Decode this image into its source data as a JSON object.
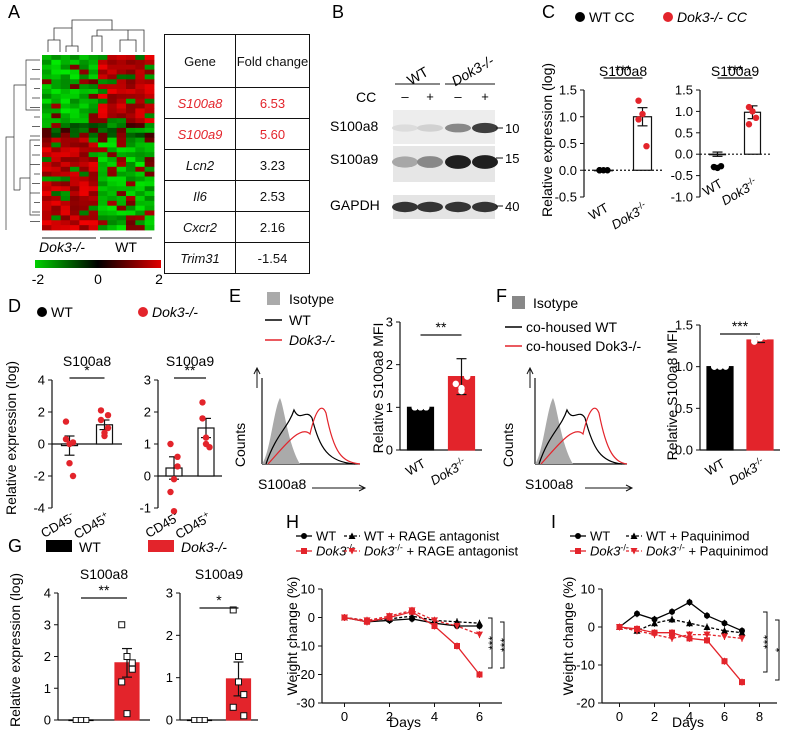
{
  "colors": {
    "wt": "#000000",
    "dok3": "#e3242b",
    "grey": "#aaaaaa"
  },
  "panel_A": {
    "letter": "A",
    "x_labels": [
      "Dok3-/-",
      "WT"
    ],
    "colorbar_ticks": [
      "-2",
      "0",
      "2"
    ],
    "table": {
      "headers": [
        "Gene",
        "Fold change"
      ],
      "rows": [
        {
          "gene": "S100a8",
          "fold": "6.53",
          "highlight": true
        },
        {
          "gene": "S100a9",
          "fold": "5.60",
          "highlight": true
        },
        {
          "gene": "Lcn2",
          "fold": "3.23",
          "highlight": false
        },
        {
          "gene": "Il6",
          "fold": "2.53",
          "highlight": false
        },
        {
          "gene": "Cxcr2",
          "fold": "2.16",
          "highlight": false
        },
        {
          "gene": "Trim31",
          "fold": "-1.54",
          "highlight": false
        }
      ]
    }
  },
  "panel_B": {
    "letter": "B",
    "groups": [
      "WT",
      "Dok3-/-"
    ],
    "cc_label": "CC",
    "cc_marks": [
      "–",
      "+",
      "–",
      "+"
    ],
    "proteins": [
      "S100a8",
      "S100a9",
      "GAPDH"
    ],
    "kda": [
      "10",
      "15",
      "40"
    ],
    "band_intensity": {
      "S100a8": [
        0.05,
        0.1,
        0.45,
        0.8
      ],
      "S100a9": [
        0.3,
        0.45,
        0.95,
        0.95
      ],
      "GAPDH": [
        0.85,
        0.85,
        0.85,
        0.85
      ]
    }
  },
  "panel_C": {
    "letter": "C",
    "legend": [
      "WT CC",
      "Dok3-/- CC"
    ],
    "ylabel": "Relative expression (log)"
  },
  "panel_D": {
    "letter": "D",
    "legend": [
      "WT",
      "Dok3-/-"
    ],
    "ylabel": "Relative expression (log)"
  },
  "panel_E": {
    "letter": "E",
    "legend": [
      "Isotype",
      "WT",
      "Dok3-/-"
    ],
    "hist_ylabel": "Counts",
    "hist_xlabel": "S100a8",
    "bar_ylabel": "Relative S100a8 MFI"
  },
  "panel_F": {
    "letter": "F",
    "legend": [
      "Isotype",
      "co-housed WT",
      "co-housed Dok3-/-"
    ],
    "hist_ylabel": "Counts",
    "hist_xlabel": "S100a8",
    "bar_ylabel": "Relative S100a8 MFI"
  },
  "panel_G": {
    "letter": "G",
    "legend": [
      "WT",
      "Dok3-/-"
    ],
    "ylabel": "Relative expression (log)"
  },
  "panel_H": {
    "letter": "H",
    "legend": [
      "WT",
      "WT + RAGE antagonist",
      "Dok3-/-",
      "Dok3-/- + RAGE antagonist"
    ],
    "ylabel": "Weight change (%)",
    "xlabel": "Days"
  },
  "panel_I": {
    "letter": "I",
    "legend": [
      "WT",
      "WT + Paquinimod",
      "Dok3-/-",
      "Dok3-/- + Paquinimod"
    ],
    "ylabel": "Weight change (%)",
    "xlabel": "Days"
  },
  "chart_data": [
    {
      "id": "C1",
      "type": "bar",
      "title": "S100a8",
      "categories": [
        "WT",
        "Dok3-/-"
      ],
      "values": [
        0.0,
        1.0
      ],
      "points": [
        [
          0,
          0,
          0,
          0
        ],
        [
          0.95,
          1.05,
          0.45,
          1.3
        ]
      ],
      "errors": [
        0.02,
        0.17
      ],
      "ylim": [
        -0.5,
        1.5
      ],
      "ticks": [
        -0.5,
        0.0,
        0.5,
        1.0,
        1.5
      ],
      "significance": "***"
    },
    {
      "id": "C2",
      "type": "bar",
      "title": "S100a9",
      "categories": [
        "WT",
        "Dok3-/-"
      ],
      "values": [
        0.0,
        0.98
      ],
      "points": [
        [
          -0.3,
          -0.32,
          -0.28,
          -0.3
        ],
        [
          0.7,
          1.0,
          0.85,
          1.1
        ]
      ],
      "errors": [
        0.05,
        0.15
      ],
      "ylim": [
        -1.0,
        1.5
      ],
      "ticks": [
        -1.0,
        -0.5,
        0.0,
        0.5,
        1.0,
        1.5
      ],
      "significance": "***"
    },
    {
      "id": "D1",
      "type": "bar",
      "title": "S100a8",
      "categories": [
        "CD45-",
        "CD45+"
      ],
      "values": [
        -0.1,
        1.2
      ],
      "points": [
        [
          0.3,
          -1.2,
          -2.0,
          1.4,
          0.0,
          0.1
        ],
        [
          1.5,
          0.7,
          1.0,
          2.1,
          0.5,
          1.8
        ]
      ],
      "errors": [
        0.6,
        0.3
      ],
      "ylim": [
        -4,
        4
      ],
      "ticks": [
        -4,
        -2,
        0,
        2,
        4
      ],
      "significance": "*"
    },
    {
      "id": "D2",
      "type": "bar",
      "title": "S100a9",
      "categories": [
        "CD45-",
        "CD45+"
      ],
      "values": [
        0.25,
        1.5
      ],
      "points": [
        [
          1.0,
          -0.1,
          0.3,
          -0.5,
          -1.1,
          0.6
        ],
        [
          2.3,
          1.2,
          0.9,
          1.8,
          1.0
        ]
      ],
      "errors": [
        0.35,
        0.3
      ],
      "ylim": [
        -1,
        3
      ],
      "ticks": [
        -1,
        0,
        1,
        2,
        3
      ],
      "significance": "**"
    },
    {
      "id": "E",
      "type": "bar",
      "categories": [
        "WT",
        "Dok3-/-"
      ],
      "values": [
        1.0,
        1.72
      ],
      "points": [
        [
          1,
          1,
          1,
          1,
          1,
          1
        ],
        [
          2.05,
          1.45,
          1.8,
          1.55,
          1.38,
          1.72
        ]
      ],
      "errors": [
        0.02,
        0.42
      ],
      "ylim": [
        0,
        3
      ],
      "ticks": [
        0,
        1,
        2,
        3
      ],
      "significance": "**"
    },
    {
      "id": "F",
      "type": "bar",
      "categories": [
        "WT",
        "Dok3-/-"
      ],
      "values": [
        1.0,
        1.32
      ],
      "points": [
        [
          1,
          1,
          1,
          1
        ],
        [
          1.3,
          1.34,
          1.36,
          1.33
        ]
      ],
      "errors": [
        0.01,
        0.03
      ],
      "ylim": [
        0,
        1.5
      ],
      "ticks": [
        0.0,
        0.5,
        1.0,
        1.5
      ],
      "significance": "***"
    },
    {
      "id": "G1",
      "type": "bar",
      "title": "S100a8",
      "categories": [
        "WT",
        "Dok3-/-"
      ],
      "values": [
        0.0,
        1.8
      ],
      "points": [
        [
          0,
          0,
          0,
          0,
          0,
          0
        ],
        [
          3.0,
          2.0,
          1.6,
          1.2,
          0.2,
          1.8
        ]
      ],
      "errors": [
        0.02,
        0.45
      ],
      "ylim": [
        0,
        4
      ],
      "ticks": [
        0,
        1,
        2,
        3,
        4
      ],
      "significance": "**"
    },
    {
      "id": "G2",
      "type": "bar",
      "title": "S100a9",
      "categories": [
        "WT",
        "Dok3-/-"
      ],
      "values": [
        0.0,
        0.97
      ],
      "points": [
        [
          0,
          0,
          0,
          0,
          0,
          0
        ],
        [
          2.6,
          1.5,
          0.6,
          0.3,
          0.9,
          0.1
        ]
      ],
      "errors": [
        0.02,
        0.4
      ],
      "ylim": [
        0,
        3
      ],
      "ticks": [
        0,
        1,
        2,
        3
      ],
      "significance": "*"
    },
    {
      "id": "H",
      "type": "line",
      "xlabel": "Days",
      "ylabel": "Weight change (%)",
      "xlim": [
        -1,
        7
      ],
      "ylim": [
        -30,
        10
      ],
      "xticks": [
        0,
        2,
        4,
        6
      ],
      "yticks": [
        -30,
        -20,
        -10,
        0,
        10
      ],
      "series": [
        {
          "name": "WT",
          "x": [
            0,
            1,
            2,
            3,
            4,
            5,
            6
          ],
          "y": [
            0,
            -1.5,
            -1,
            -0.5,
            -2,
            -3,
            -3
          ]
        },
        {
          "name": "WT + RAGE antagonist",
          "x": [
            0,
            1,
            2,
            3,
            4,
            5,
            6
          ],
          "y": [
            0,
            -1,
            -0.5,
            0.5,
            -1,
            -1.5,
            -2
          ]
        },
        {
          "name": "Dok3-/-",
          "x": [
            0,
            1,
            2,
            3,
            4,
            5,
            6
          ],
          "y": [
            0,
            -1.5,
            0,
            2,
            -3,
            -10,
            -20
          ]
        },
        {
          "name": "Dok3-/- + RAGE antagonist",
          "x": [
            0,
            1,
            2,
            3,
            4,
            5,
            6
          ],
          "y": [
            0,
            -1,
            0.5,
            2.5,
            -1,
            -3,
            -6
          ]
        }
      ],
      "significance": [
        "***",
        "***"
      ]
    },
    {
      "id": "I",
      "type": "line",
      "xlabel": "Days",
      "ylabel": "Weight change (%)",
      "xlim": [
        -1,
        9
      ],
      "ylim": [
        -20,
        10
      ],
      "xticks": [
        0,
        2,
        4,
        6,
        8
      ],
      "yticks": [
        -20,
        -10,
        0,
        10
      ],
      "series": [
        {
          "name": "WT",
          "x": [
            0,
            1,
            2,
            3,
            4,
            5,
            6,
            7
          ],
          "y": [
            0,
            3.5,
            2,
            4,
            6.5,
            3,
            1,
            -1
          ]
        },
        {
          "name": "WT + Paquinimod",
          "x": [
            0,
            1,
            2,
            3,
            4,
            5,
            6,
            7
          ],
          "y": [
            0,
            -1,
            1,
            2,
            1,
            0,
            -1,
            -1.5
          ]
        },
        {
          "name": "Dok3-/-",
          "x": [
            0,
            1,
            2,
            3,
            4,
            5,
            6,
            7
          ],
          "y": [
            0,
            -0.5,
            -1.5,
            -1.5,
            -3,
            -3.5,
            -9,
            -14.5
          ]
        },
        {
          "name": "Dok3-/- + Paquinimod",
          "x": [
            0,
            1,
            2,
            3,
            4,
            5,
            6,
            7
          ],
          "y": [
            0,
            -1,
            -2,
            -3,
            -2,
            -2,
            -2.5,
            -3
          ]
        }
      ],
      "significance": [
        "***",
        "*"
      ]
    }
  ]
}
